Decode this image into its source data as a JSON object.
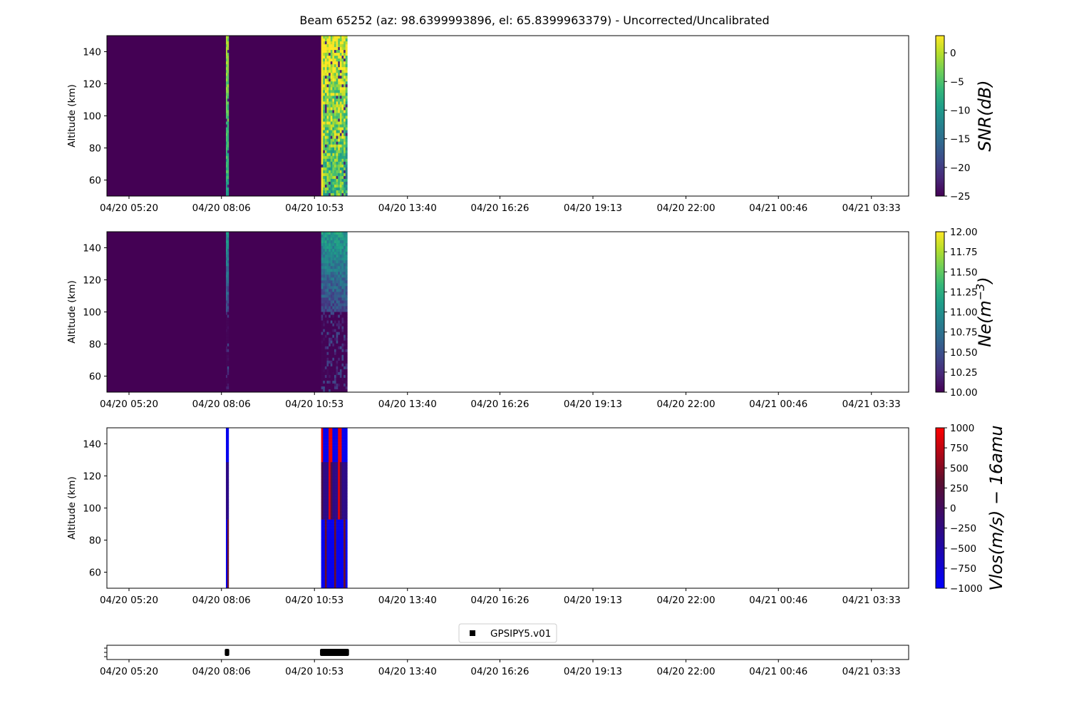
{
  "title": "Beam 65252 (az: 98.6399993896, el: 65.8399963379) - Uncorrected/Uncalibrated",
  "colors": {
    "background_fill": "#440154",
    "viridis": [
      "#440154",
      "#482878",
      "#3e4989",
      "#31688e",
      "#26828e",
      "#1f9e89",
      "#35b779",
      "#6ece58",
      "#b5de2b",
      "#fde725"
    ],
    "vlos_scale": [
      "#0000ff",
      "#2a0a8c",
      "#5a0f2e",
      "#ff0000"
    ],
    "marker": "#000000"
  },
  "chart_data": [
    {
      "id": "snr",
      "type": "heatmap",
      "ylabel": "Altitude (km)",
      "ylim": [
        50,
        150
      ],
      "yticks": [
        60,
        80,
        100,
        120,
        140
      ],
      "xticks": [
        "04/20 05:20",
        "04/20 08:06",
        "04/20 10:53",
        "04/20 13:40",
        "04/20 16:26",
        "04/20 19:13",
        "04/20 22:00",
        "04/21 00:46",
        "04/21 03:33"
      ],
      "colorbar": {
        "label": "SNR(dB)",
        "ticks": [
          "0",
          "−5",
          "−10",
          "−15",
          "−20",
          "−25"
        ],
        "range": [
          -25,
          3
        ]
      },
      "colormap": "viridis",
      "filled_background": true,
      "data_blocks": [
        {
          "start": "04/20 08:14",
          "end": "04/20 08:19",
          "value_high": 3,
          "value_low": -12
        },
        {
          "start": "04/20 11:05",
          "end": "04/20 11:52",
          "value_high": 2,
          "value_low": -14
        }
      ]
    },
    {
      "id": "ne",
      "type": "heatmap",
      "ylabel": "Altitude (km)",
      "ylim": [
        50,
        150
      ],
      "yticks": [
        60,
        80,
        100,
        120,
        140
      ],
      "xticks": [
        "04/20 05:20",
        "04/20 08:06",
        "04/20 10:53",
        "04/20 13:40",
        "04/20 16:26",
        "04/20 19:13",
        "04/20 22:00",
        "04/21 00:46",
        "04/21 03:33"
      ],
      "colorbar": {
        "label": "Ne(m",
        "label_sup": "−3",
        "label_end": ")",
        "ticks": [
          "12.00",
          "11.75",
          "11.50",
          "11.25",
          "11.00",
          "10.75",
          "10.50",
          "10.25",
          "10.00"
        ],
        "range": [
          10,
          12
        ]
      },
      "colormap": "viridis",
      "filled_background": true,
      "data_blocks": [
        {
          "start": "04/20 08:14",
          "end": "04/20 08:19",
          "value_high": 11.0,
          "value_low": 10.2
        },
        {
          "start": "04/20 11:05",
          "end": "04/20 11:52",
          "value_high": 11.1,
          "value_low": 10.25
        }
      ]
    },
    {
      "id": "vlos",
      "type": "heatmap",
      "ylabel": "Altitude (km)",
      "ylim": [
        50,
        150
      ],
      "yticks": [
        60,
        80,
        100,
        120,
        140
      ],
      "xticks": [
        "04/20 05:20",
        "04/20 08:06",
        "04/20 10:53",
        "04/20 13:40",
        "04/20 16:26",
        "04/20 19:13",
        "04/20 22:00",
        "04/21 00:46",
        "04/21 03:33"
      ],
      "colorbar": {
        "label": "Vlos(m/s) − 16amu",
        "ticks": [
          "1000",
          "750",
          "500",
          "250",
          "0",
          "−250",
          "−500",
          "−750",
          "−1000"
        ],
        "range": [
          -1000,
          1000
        ]
      },
      "colormap": "blue-red",
      "filled_background": false,
      "data_blocks": [
        {
          "start": "04/20 08:14",
          "end": "04/20 08:19"
        },
        {
          "start": "04/20 11:05",
          "end": "04/20 11:52"
        }
      ]
    },
    {
      "id": "gps",
      "type": "scatter",
      "xticks": [
        "04/20 05:20",
        "04/20 08:06",
        "04/20 10:53",
        "04/20 13:40",
        "04/20 16:26",
        "04/20 19:13",
        "04/20 22:00",
        "04/21 00:46",
        "04/21 03:33"
      ],
      "legend": {
        "entries": [
          "GPSIPY5.v01"
        ],
        "placement": "top-center"
      },
      "segments": [
        {
          "start": "04/20 08:12",
          "end": "04/20 08:20"
        },
        {
          "start": "04/20 11:03",
          "end": "04/20 11:55"
        }
      ]
    }
  ]
}
